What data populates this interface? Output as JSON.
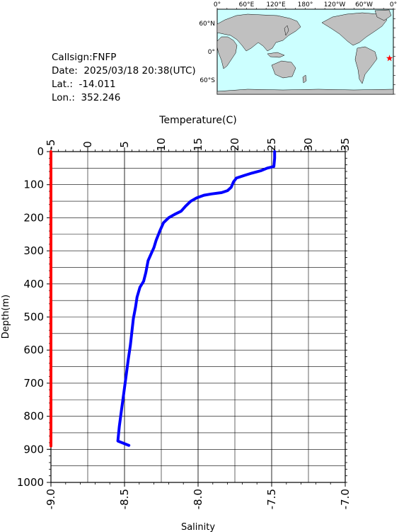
{
  "info": {
    "callsign": "Callsign:FNFP",
    "date": "Date:  2025/03/18 20:38(UTC)",
    "lat": "Lat.:  -14.011",
    "lon": "Lon.:  352.246"
  },
  "map": {
    "lon_labels": [
      "0°",
      "60°E",
      "120°E",
      "180°",
      "120°W",
      "60°W",
      "0°"
    ],
    "lat_labels": [
      "60°N",
      "0°",
      "60°S"
    ],
    "ocean_color": "#ccffff",
    "land_color": "#c0c0c0",
    "marker": {
      "lon": 352.246,
      "lat": -14.011,
      "color": "#ff0000",
      "symbol": "star"
    }
  },
  "chart_data": {
    "type": "line",
    "top_axis": {
      "label": "Temperature(C)",
      "range": [
        -5,
        35
      ],
      "ticks": [
        "-5",
        "0",
        "5",
        "10",
        "15",
        "20",
        "25",
        "30",
        "35"
      ]
    },
    "bottom_axis": {
      "label": "Salinity",
      "range": [
        -9.0,
        -7.0
      ],
      "ticks": [
        "-9.0",
        "-8.5",
        "-8.0",
        "-7.5",
        "-7.0"
      ]
    },
    "left_axis": {
      "label": "Depth(m)",
      "range": [
        0,
        1000
      ],
      "inverted": true,
      "ticks": [
        "0",
        "100",
        "200",
        "300",
        "400",
        "500",
        "600",
        "700",
        "800",
        "900",
        "1000"
      ]
    },
    "grid": true,
    "series": [
      {
        "name": "",
        "axis": "temperature",
        "color": "#0000ff",
        "points": [
          [
            25.4,
            0
          ],
          [
            25.4,
            20
          ],
          [
            25.3,
            45
          ],
          [
            24.4,
            50
          ],
          [
            23.5,
            58
          ],
          [
            22.3,
            65
          ],
          [
            21.3,
            72
          ],
          [
            20.2,
            80
          ],
          [
            19.8,
            92
          ],
          [
            19.5,
            108
          ],
          [
            19.0,
            118
          ],
          [
            18.2,
            124
          ],
          [
            16.8,
            128
          ],
          [
            15.8,
            132
          ],
          [
            14.8,
            140
          ],
          [
            14.0,
            150
          ],
          [
            13.3,
            165
          ],
          [
            12.7,
            180
          ],
          [
            11.8,
            190
          ],
          [
            11.0,
            200
          ],
          [
            10.3,
            215
          ],
          [
            9.8,
            240
          ],
          [
            9.3,
            268
          ],
          [
            9.0,
            290
          ],
          [
            8.6,
            310
          ],
          [
            8.2,
            330
          ],
          [
            7.9,
            365
          ],
          [
            7.6,
            392
          ],
          [
            7.1,
            410
          ],
          [
            6.7,
            440
          ],
          [
            6.5,
            470
          ],
          [
            6.2,
            505
          ],
          [
            6.0,
            545
          ],
          [
            5.8,
            585
          ],
          [
            5.5,
            630
          ],
          [
            5.2,
            680
          ],
          [
            4.9,
            730
          ],
          [
            4.6,
            780
          ],
          [
            4.3,
            830
          ],
          [
            4.1,
            875
          ],
          [
            5.6,
            888
          ]
        ]
      },
      {
        "name": "",
        "axis": "salinity",
        "color": "#ff0000",
        "points": [
          [
            -9.0,
            0
          ],
          [
            -9.0,
            890
          ]
        ]
      }
    ]
  }
}
